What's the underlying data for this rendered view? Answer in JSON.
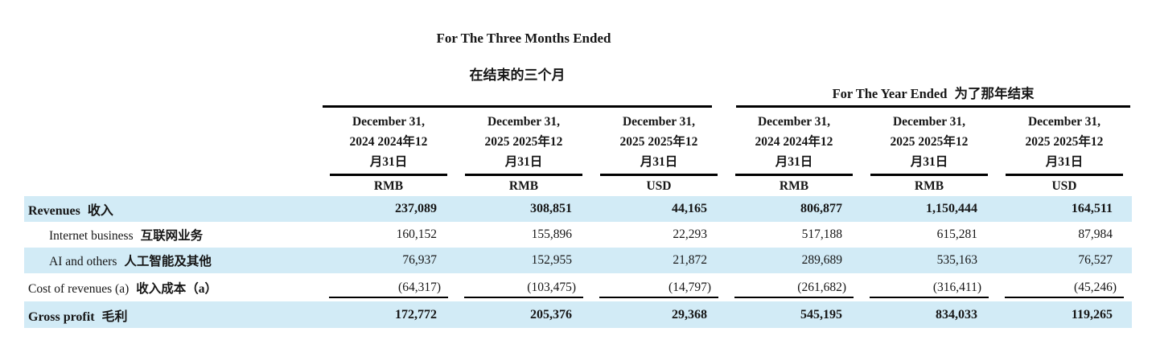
{
  "colors": {
    "row_highlight": "#d2ebf6",
    "text": "#161616"
  },
  "titles": {
    "three_months_en": "For The Three Months Ended",
    "three_months_zh": "在结束的三个月",
    "year_ended_en": "For The Year Ended",
    "year_ended_zh": "为了那年结束"
  },
  "table": {
    "columns": [
      {
        "line1": "December 31,",
        "line2": "2024 2024年12",
        "line3": "月31日",
        "currency": "RMB"
      },
      {
        "line1": "December 31,",
        "line2": "2025 2025年12",
        "line3": "月31日",
        "currency": "RMB"
      },
      {
        "line1": "December 31,",
        "line2": "2025 2025年12",
        "line3": "月31日",
        "currency": "USD"
      },
      {
        "line1": "December 31,",
        "line2": "2024 2024年12",
        "line3": "月31日",
        "currency": "RMB"
      },
      {
        "line1": "December 31,",
        "line2": "2025 2025年12",
        "line3": "月31日",
        "currency": "RMB"
      },
      {
        "line1": "December 31,",
        "line2": "2025 2025年12",
        "line3": "月31日",
        "currency": "USD"
      }
    ],
    "rows": [
      {
        "label_en": "Revenues",
        "label_zh": "收入",
        "values": [
          "237,089",
          "308,851",
          "44,165",
          "806,877",
          "1,150,444",
          "164,511"
        ]
      },
      {
        "label_en": "Internet business",
        "label_zh": "互联网业务",
        "values": [
          "160,152",
          "155,896",
          "22,293",
          "517,188",
          "615,281",
          "87,984"
        ]
      },
      {
        "label_en": "AI and others",
        "label_zh": "人工智能及其他",
        "values": [
          "76,937",
          "152,955",
          "21,872",
          "289,689",
          "535,163",
          "76,527"
        ]
      },
      {
        "label_en": "Cost of revenues (a)",
        "label_zh": "收入成本（a）",
        "values": [
          "(64,317)",
          "(103,475)",
          "(14,797)",
          "(261,682)",
          "(316,411)",
          "(45,246)"
        ]
      },
      {
        "label_en": "Gross profit",
        "label_zh": "毛利",
        "values": [
          "172,772",
          "205,376",
          "29,368",
          "545,195",
          "834,033",
          "119,265"
        ]
      }
    ]
  }
}
